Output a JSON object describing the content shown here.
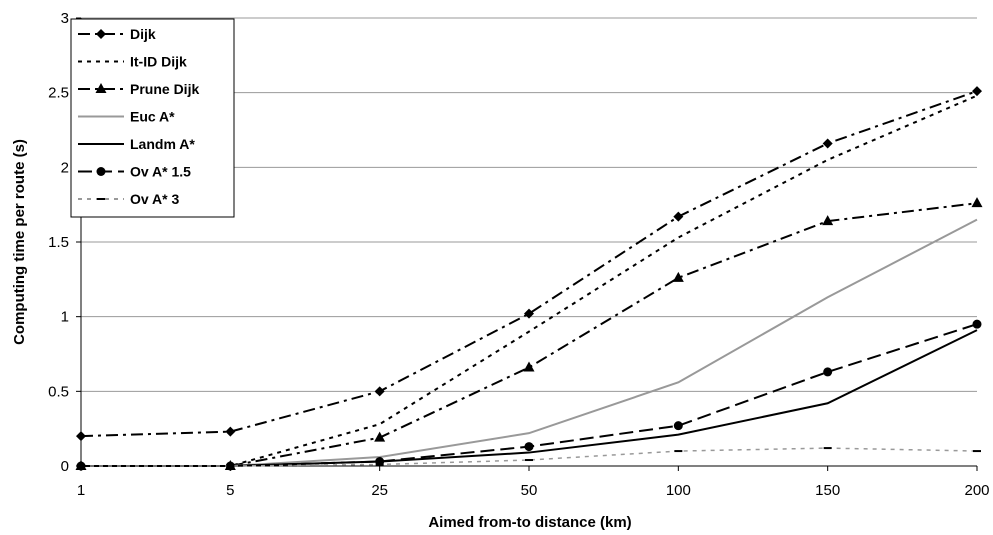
{
  "chart_data": {
    "type": "line",
    "title": "",
    "xlabel": "Aimed from-to distance (km)",
    "ylabel": "Computing time per route (s)",
    "categories": [
      "1",
      "5",
      "25",
      "50",
      "100",
      "150",
      "200"
    ],
    "ylim": [
      0,
      3
    ],
    "yticks": [
      "0",
      "0.5",
      "1",
      "1.5",
      "2",
      "2.5",
      "3"
    ],
    "grid": "horizontal",
    "legend_position": "top-left",
    "series": [
      {
        "name": "Dijk",
        "values": [
          0.2,
          0.23,
          0.5,
          1.02,
          1.67,
          2.16,
          2.51
        ],
        "color": "#000000",
        "dash": "dashdot",
        "marker": "diamond"
      },
      {
        "name": "It-ID Dijk",
        "values": [
          0.0,
          0.0,
          0.28,
          0.9,
          1.53,
          2.05,
          2.48
        ],
        "color": "#000000",
        "dash": "dotted",
        "marker": "none"
      },
      {
        "name": "Prune Dijk",
        "values": [
          0.0,
          0.0,
          0.19,
          0.66,
          1.26,
          1.64,
          1.76
        ],
        "color": "#000000",
        "dash": "dashdot",
        "marker": "triangle"
      },
      {
        "name": "Euc A*",
        "values": [
          0.0,
          0.0,
          0.06,
          0.22,
          0.56,
          1.13,
          1.65
        ],
        "color": "#999999",
        "dash": "solid",
        "marker": "none"
      },
      {
        "name": "Landm A*",
        "values": [
          0.0,
          0.0,
          0.03,
          0.09,
          0.21,
          0.42,
          0.91
        ],
        "color": "#000000",
        "dash": "solid",
        "marker": "none"
      },
      {
        "name": "Ov A* 1.5",
        "values": [
          0.0,
          0.0,
          0.03,
          0.13,
          0.27,
          0.63,
          0.95
        ],
        "color": "#000000",
        "dash": "dashed",
        "marker": "circle"
      },
      {
        "name": "Ov A* 3",
        "values": [
          0.0,
          0.0,
          0.01,
          0.04,
          0.1,
          0.12,
          0.1
        ],
        "color": "#999999",
        "dash": "dotted",
        "marker": "dash"
      }
    ]
  }
}
